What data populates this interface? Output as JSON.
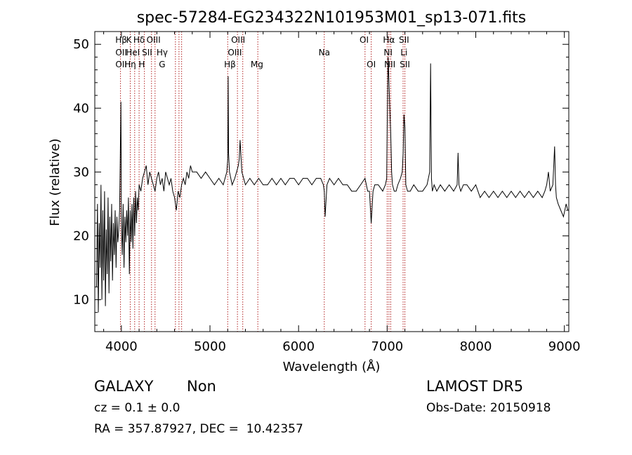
{
  "chart_data": {
    "type": "line",
    "title": "spec-57284-EG234322N101953M01_sp13-071.fits",
    "xlabel": "Wavelength (Å)",
    "ylabel": "Flux (relative)",
    "xlim": [
      3700,
      9050
    ],
    "ylim": [
      5,
      52
    ],
    "xticks": [
      4000,
      5000,
      6000,
      7000,
      8000,
      9000
    ],
    "yticks": [
      10,
      20,
      30,
      40,
      50
    ],
    "line_color": "#000000",
    "marker_color": "#b22222",
    "lines": [
      {
        "label": "Hβ",
        "x": 3998,
        "row": 0
      },
      {
        "label": "K",
        "x": 4085,
        "row": 0
      },
      {
        "label": "Hδ",
        "x": 4200,
        "row": 0
      },
      {
        "label": "OIII",
        "x": 4363,
        "row": 0
      },
      {
        "label": "OIII",
        "x": 5318,
        "row": 0
      },
      {
        "label": "OI",
        "x": 6740,
        "row": 0
      },
      {
        "label": "Hα",
        "x": 7020,
        "row": 0
      },
      {
        "label": "SII",
        "x": 7190,
        "row": 0
      },
      {
        "label": "OII",
        "x": 3998,
        "row": 1
      },
      {
        "label": "HeI",
        "x": 4130,
        "row": 1
      },
      {
        "label": "SII",
        "x": 4290,
        "row": 1
      },
      {
        "label": "Hγ",
        "x": 4460,
        "row": 1
      },
      {
        "label": "OIII",
        "x": 5280,
        "row": 1
      },
      {
        "label": "Na",
        "x": 6290,
        "row": 1
      },
      {
        "label": "NI",
        "x": 7010,
        "row": 1
      },
      {
        "label": "Li",
        "x": 7190,
        "row": 1
      },
      {
        "label": "OII",
        "x": 3998,
        "row": 2
      },
      {
        "label": "Hη",
        "x": 4100,
        "row": 2
      },
      {
        "label": "H",
        "x": 4230,
        "row": 2
      },
      {
        "label": "G",
        "x": 4460,
        "row": 2
      },
      {
        "label": "Hβ",
        "x": 5225,
        "row": 2
      },
      {
        "label": "Mg",
        "x": 5530,
        "row": 2
      },
      {
        "label": "OI",
        "x": 6820,
        "row": 2
      },
      {
        "label": "NII",
        "x": 7030,
        "row": 2
      },
      {
        "label": "SII",
        "x": 7200,
        "row": 2
      }
    ],
    "markers": [
      3990,
      4100,
      4150,
      4200,
      4260,
      4340,
      4380,
      4610,
      4650,
      4680,
      5200,
      5310,
      5370,
      5540,
      6290,
      6750,
      6820,
      7000,
      7020,
      7040,
      7180,
      7200
    ],
    "series": [
      {
        "x": [
          3720,
          3730,
          3740,
          3750,
          3760,
          3770,
          3780,
          3790,
          3800,
          3810,
          3820,
          3830,
          3840,
          3850,
          3860,
          3870,
          3880,
          3890,
          3900,
          3910,
          3920,
          3930,
          3940,
          3950,
          3960,
          3970,
          3980,
          3995,
          4000,
          4010,
          4020,
          4030,
          4040,
          4050,
          4060,
          4070,
          4080,
          4090,
          4100,
          4110,
          4120,
          4130,
          4140,
          4150,
          4160,
          4170,
          4180,
          4190,
          4200,
          4220,
          4240,
          4260,
          4280,
          4300,
          4320,
          4340,
          4360,
          4380,
          4400,
          4420,
          4440,
          4460,
          4480,
          4500,
          4520,
          4540,
          4560,
          4580,
          4600,
          4620,
          4640,
          4660,
          4680,
          4700,
          4720,
          4740,
          4760,
          4780,
          4800,
          4850,
          4900,
          4950,
          5000,
          5050,
          5100,
          5150,
          5190,
          5200,
          5205,
          5210,
          5220,
          5250,
          5280,
          5300,
          5320,
          5330,
          5340,
          5360,
          5380,
          5400,
          5450,
          5500,
          5550,
          5600,
          5650,
          5700,
          5750,
          5800,
          5850,
          5900,
          5950,
          6000,
          6050,
          6100,
          6150,
          6200,
          6250,
          6280,
          6290,
          6300,
          6320,
          6350,
          6400,
          6450,
          6500,
          6550,
          6600,
          6650,
          6700,
          6750,
          6780,
          6800,
          6820,
          6840,
          6860,
          6900,
          6950,
          6980,
          6995,
          7000,
          7010,
          7020,
          7030,
          7040,
          7050,
          7060,
          7080,
          7100,
          7120,
          7150,
          7170,
          7180,
          7190,
          7200,
          7210,
          7230,
          7260,
          7300,
          7350,
          7400,
          7450,
          7480,
          7490,
          7500,
          7510,
          7530,
          7560,
          7600,
          7650,
          7700,
          7750,
          7790,
          7800,
          7810,
          7830,
          7860,
          7900,
          7950,
          8000,
          8050,
          8100,
          8150,
          8200,
          8250,
          8300,
          8350,
          8400,
          8450,
          8500,
          8550,
          8600,
          8650,
          8700,
          8750,
          8780,
          8800,
          8820,
          8840,
          8870,
          8890,
          8900,
          8910,
          8930,
          8960,
          8990,
          9020,
          9040
        ],
        "y": [
          12,
          25,
          8,
          22,
          15,
          28,
          10,
          24,
          13,
          27,
          9,
          21,
          14,
          26,
          11,
          23,
          16,
          25,
          13,
          22,
          17,
          24,
          15,
          23,
          19,
          21,
          24,
          41,
          22,
          17,
          25,
          15,
          23,
          19,
          24,
          20,
          26,
          14,
          24,
          19,
          25,
          18,
          26,
          20,
          27,
          22,
          26,
          24,
          28,
          27,
          29,
          30,
          31,
          28,
          30,
          29,
          28,
          27,
          29,
          30,
          28,
          29,
          27,
          30,
          29,
          28,
          29,
          27,
          26,
          24,
          27,
          26,
          28,
          29,
          28,
          30,
          29,
          31,
          30,
          30,
          29,
          30,
          29,
          28,
          29,
          28,
          30,
          32,
          45,
          33,
          30,
          28,
          29,
          30,
          31,
          32,
          35,
          30,
          29,
          28,
          29,
          28,
          29,
          28,
          28,
          29,
          28,
          29,
          28,
          29,
          29,
          28,
          29,
          29,
          28,
          29,
          29,
          28,
          27,
          23,
          28,
          29,
          28,
          29,
          28,
          28,
          27,
          27,
          28,
          29,
          27,
          27,
          22,
          27,
          28,
          28,
          27,
          28,
          29,
          37,
          48,
          44,
          40,
          36,
          30,
          28,
          27,
          27,
          28,
          29,
          30,
          33,
          39,
          37,
          28,
          27,
          27,
          28,
          27,
          27,
          28,
          30,
          47,
          29,
          27,
          28,
          27,
          28,
          27,
          28,
          27,
          28,
          33,
          28,
          27,
          28,
          28,
          27,
          28,
          26,
          27,
          26,
          27,
          26,
          27,
          26,
          27,
          26,
          27,
          26,
          27,
          26,
          27,
          26,
          27,
          28,
          30,
          27,
          28,
          34,
          28,
          26,
          25,
          24,
          23,
          25,
          24
        ]
      }
    ]
  },
  "info": {
    "class": "GALAXY",
    "subclass": "Non",
    "cz": "cz = 0.1 ± 0.0",
    "coords": "RA = 357.87927, DEC =  10.42357",
    "survey": "LAMOST DR5",
    "obs_date": "Obs-Date: 20150918"
  }
}
